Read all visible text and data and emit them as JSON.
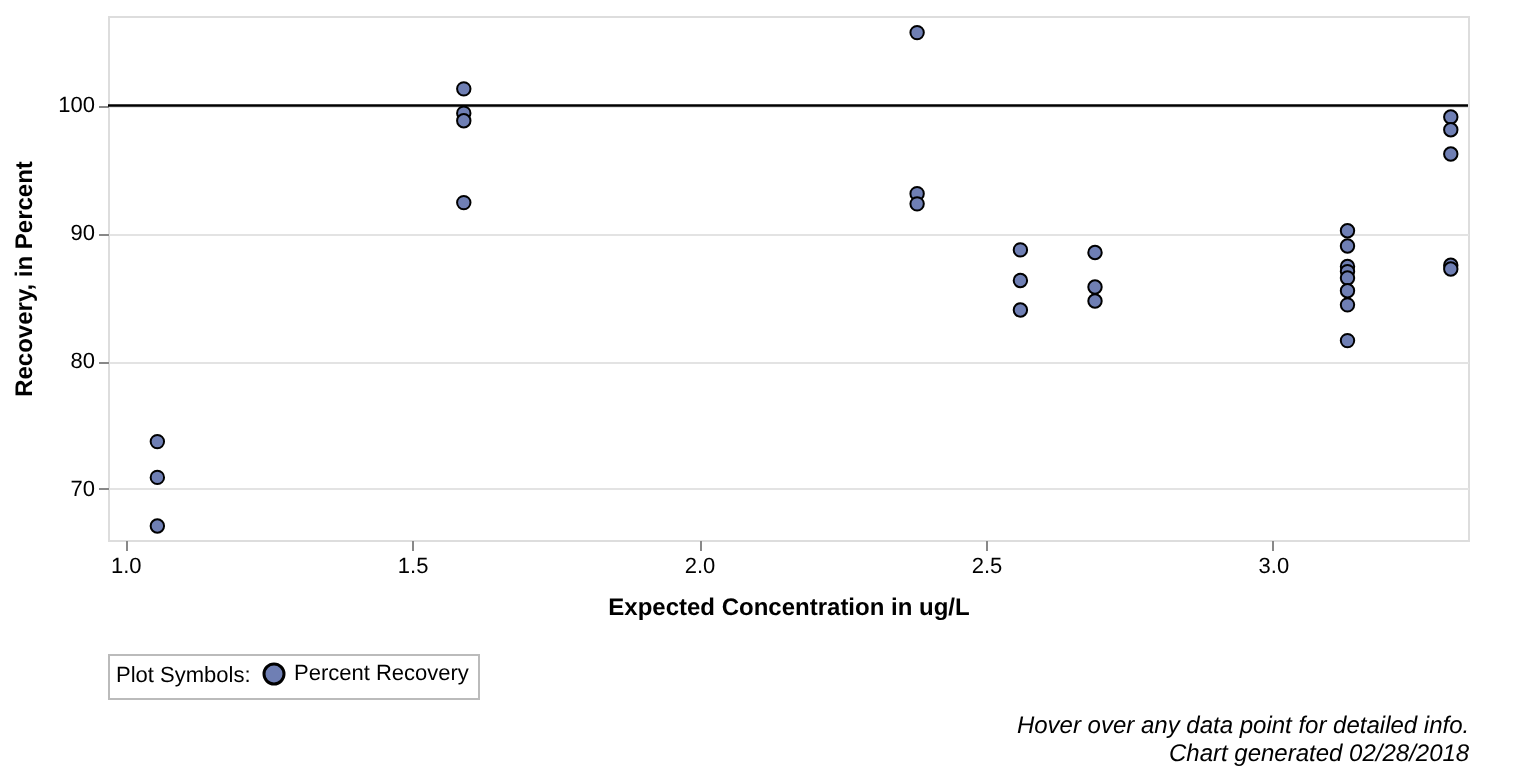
{
  "chart_data": {
    "type": "scatter",
    "xlabel": "Expected Concentration in ug/L",
    "ylabel": "Recovery, in Percent",
    "legend_title": "Plot Symbols:",
    "xlim": [
      0.97,
      3.34
    ],
    "xticks": [
      {
        "value": 1,
        "label": "1.0"
      },
      1.5,
      {
        "value": 2,
        "label": "2.0"
      },
      2.5,
      {
        "value": 3,
        "label": "3.0"
      }
    ],
    "ylim": [
      66,
      107
    ],
    "yticks": [
      70,
      80,
      90,
      100
    ],
    "series": [
      {
        "name": "Percent Recovery",
        "color": "#6f7fb4",
        "x": [
          1.056,
          1.056,
          1.056,
          1.59,
          1.59,
          1.59,
          1.59,
          2.38,
          2.38,
          2.38,
          2.56,
          2.56,
          2.56,
          2.69,
          2.69,
          2.69,
          3.13,
          3.13,
          3.13,
          3.13,
          3.13,
          3.13,
          3.13,
          3.13,
          3.31,
          3.31,
          3.31,
          3.31,
          3.31
        ],
        "values": [
          73.7,
          70.9,
          67.1,
          101.3,
          99.4,
          98.8,
          92.4,
          105.7,
          93.1,
          92.3,
          88.7,
          86.3,
          84.0,
          88.5,
          85.8,
          84.7,
          90.2,
          89.0,
          87.4,
          87.0,
          86.5,
          85.5,
          84.4,
          81.6,
          99.1,
          98.1,
          96.2,
          87.5,
          87.2
        ]
      }
    ],
    "ref_lines": [
      {
        "axis": "y",
        "value": 100,
        "color": "#000000"
      }
    ],
    "grid": "y",
    "marker": "circle",
    "legend": "bottom",
    "annotations": [
      "Hover over any data point for detailed info.",
      "Chart generated 02/28/2018"
    ]
  }
}
